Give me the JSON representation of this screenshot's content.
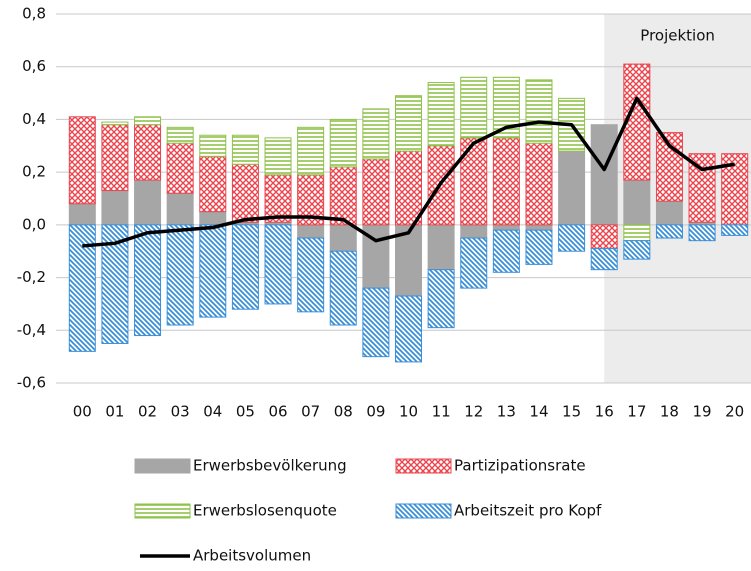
{
  "chart_data": {
    "type": "bar",
    "categories": [
      "00",
      "01",
      "02",
      "03",
      "04",
      "05",
      "06",
      "07",
      "08",
      "09",
      "10",
      "11",
      "12",
      "13",
      "14",
      "15",
      "16",
      "17",
      "18",
      "19",
      "20"
    ],
    "series": [
      {
        "name": "Erwerbsbevölkerung",
        "color": "#a6a6a6",
        "pattern": "solid",
        "values": [
          0.08,
          0.13,
          0.17,
          0.12,
          0.05,
          0.01,
          0.01,
          -0.05,
          -0.1,
          -0.24,
          -0.27,
          -0.17,
          -0.05,
          -0.02,
          -0.02,
          0.28,
          0.38,
          0.17,
          0.09,
          0.01,
          0.0
        ]
      },
      {
        "name": "Partizipationsrate",
        "color": "#e8464e",
        "pattern": "crosshatch",
        "values": [
          0.33,
          0.25,
          0.21,
          0.19,
          0.21,
          0.22,
          0.18,
          0.19,
          0.22,
          0.25,
          0.28,
          0.3,
          0.33,
          0.33,
          0.31,
          0.0,
          -0.09,
          0.44,
          0.26,
          0.26,
          0.27
        ]
      },
      {
        "name": "Erwerbslosenquote",
        "color": "#8fc24a",
        "pattern": "horizontal",
        "values": [
          0.0,
          0.01,
          0.03,
          0.06,
          0.08,
          0.11,
          0.14,
          0.18,
          0.18,
          0.19,
          0.21,
          0.24,
          0.23,
          0.23,
          0.24,
          0.2,
          0.0,
          -0.06,
          0.0,
          0.0,
          0.0
        ]
      },
      {
        "name": "Arbeitszeit pro Kopf",
        "color": "#3a8fd8",
        "pattern": "diagonal",
        "values": [
          -0.48,
          -0.45,
          -0.42,
          -0.38,
          -0.35,
          -0.32,
          -0.3,
          -0.28,
          -0.28,
          -0.26,
          -0.25,
          -0.22,
          -0.19,
          -0.16,
          -0.13,
          -0.1,
          -0.08,
          -0.07,
          -0.05,
          -0.06,
          -0.04
        ]
      },
      {
        "name": "Arbeitsvolumen",
        "color": "#000000",
        "type": "line",
        "values": [
          -0.08,
          -0.07,
          -0.03,
          -0.02,
          -0.01,
          0.02,
          0.03,
          0.03,
          0.02,
          -0.06,
          -0.03,
          0.16,
          0.31,
          0.37,
          0.39,
          0.38,
          0.21,
          0.48,
          0.3,
          0.21,
          0.23
        ]
      }
    ],
    "ylim": [
      -0.6,
      0.8
    ],
    "yticks": [
      {
        "value": -0.6,
        "label": "-0,6"
      },
      {
        "value": -0.4,
        "label": "-0,4"
      },
      {
        "value": -0.2,
        "label": "-0,2"
      },
      {
        "value": 0,
        "label": "0,0"
      },
      {
        "value": 0.2,
        "label": "0,2"
      },
      {
        "value": 0.4,
        "label": "0,4"
      },
      {
        "value": 0.6,
        "label": "0,6"
      },
      {
        "value": 0.8,
        "label": "0,8"
      }
    ],
    "grid": true,
    "shade": {
      "from": "16",
      "label": "Projektion"
    }
  }
}
